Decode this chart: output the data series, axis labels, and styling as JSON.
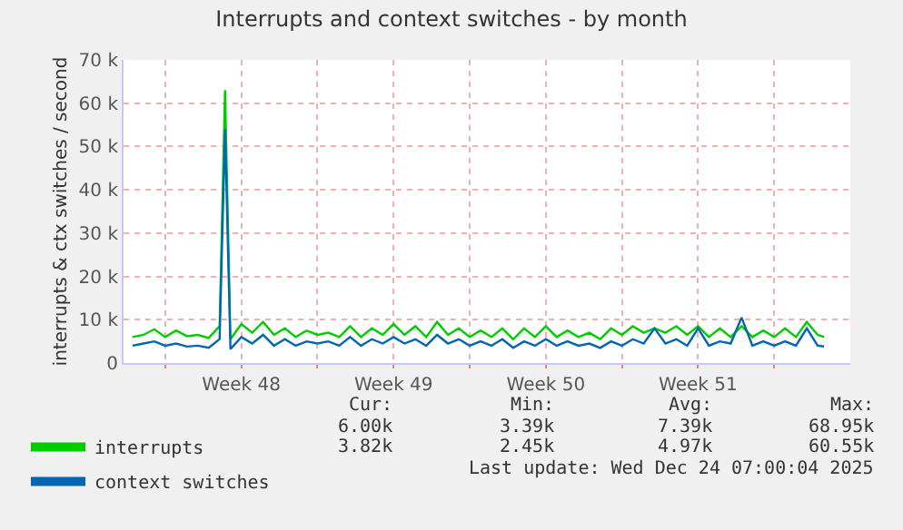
{
  "chart_data": {
    "type": "line",
    "title": "Interrupts and context switches - by month",
    "ylabel": "interrupts & ctx switches / second",
    "x": [
      "2025-11-22T12:00",
      "2025-11-23T00:00",
      "2025-11-23T12:00",
      "2025-11-24T00:00",
      "2025-11-24T12:00",
      "2025-11-25T00:00",
      "2025-11-25T12:00",
      "2025-11-26T00:00",
      "2025-11-26T12:00",
      "2025-11-26T18:00",
      "2025-11-27T00:00",
      "2025-11-27T12:00",
      "2025-11-28T00:00",
      "2025-11-28T12:00",
      "2025-11-29T00:00",
      "2025-11-29T12:00",
      "2025-11-30T00:00",
      "2025-11-30T12:00",
      "2025-12-01T00:00",
      "2025-12-01T12:00",
      "2025-12-02T00:00",
      "2025-12-02T12:00",
      "2025-12-03T00:00",
      "2025-12-03T12:00",
      "2025-12-04T00:00",
      "2025-12-04T12:00",
      "2025-12-05T00:00",
      "2025-12-05T12:00",
      "2025-12-06T00:00",
      "2025-12-06T12:00",
      "2025-12-07T00:00",
      "2025-12-07T12:00",
      "2025-12-08T00:00",
      "2025-12-08T12:00",
      "2025-12-09T00:00",
      "2025-12-09T12:00",
      "2025-12-10T00:00",
      "2025-12-10T12:00",
      "2025-12-11T00:00",
      "2025-12-11T12:00",
      "2025-12-12T00:00",
      "2025-12-12T12:00",
      "2025-12-13T00:00",
      "2025-12-13T12:00",
      "2025-12-14T00:00",
      "2025-12-14T12:00",
      "2025-12-15T00:00",
      "2025-12-15T12:00",
      "2025-12-16T00:00",
      "2025-12-16T12:00",
      "2025-12-17T00:00",
      "2025-12-17T12:00",
      "2025-12-18T00:00",
      "2025-12-18T12:00",
      "2025-12-19T00:00",
      "2025-12-19T12:00",
      "2025-12-20T00:00",
      "2025-12-20T12:00",
      "2025-12-21T00:00",
      "2025-12-21T12:00",
      "2025-12-22T00:00",
      "2025-12-22T12:00",
      "2025-12-23T00:00",
      "2025-12-23T12:00",
      "2025-12-24T00:00",
      "2025-12-24T07:00"
    ],
    "series": [
      {
        "name": "interrupts",
        "color": "#00cc00",
        "values": [
          6000,
          6500,
          7800,
          6000,
          7500,
          6200,
          6500,
          5800,
          8500,
          63000,
          5500,
          9000,
          7000,
          9500,
          6500,
          8000,
          6000,
          7500,
          6500,
          7000,
          6000,
          8500,
          6000,
          8000,
          6500,
          9000,
          6500,
          8500,
          6000,
          9500,
          6500,
          8000,
          6000,
          7500,
          6000,
          8000,
          5500,
          8000,
          6000,
          8500,
          6000,
          7500,
          6000,
          7000,
          5500,
          8000,
          6500,
          8500,
          7000,
          8000,
          7000,
          8500,
          6500,
          8500,
          6000,
          8000,
          6000,
          8500,
          6000,
          7500,
          6000,
          8000,
          6000,
          9500,
          6500,
          6000
        ]
      },
      {
        "name": "context switches",
        "color": "#0066b3",
        "values": [
          4000,
          4500,
          5000,
          4000,
          4500,
          3800,
          4000,
          3500,
          5500,
          54000,
          3200,
          6000,
          4500,
          6500,
          4000,
          5500,
          4000,
          5000,
          4500,
          5000,
          4000,
          6000,
          4000,
          5500,
          4500,
          6000,
          4500,
          5500,
          4000,
          6500,
          4500,
          5500,
          4000,
          5000,
          4000,
          5500,
          3500,
          5000,
          4000,
          5500,
          4000,
          5000,
          4000,
          4500,
          3500,
          5000,
          4000,
          5500,
          4500,
          8000,
          4500,
          5500,
          4000,
          8000,
          4000,
          5000,
          4500,
          10500,
          4000,
          5000,
          4000,
          5000,
          4000,
          8000,
          4000,
          3820
        ]
      }
    ],
    "xlim": [
      "2025-11-22T02:00",
      "2025-12-25T12:00"
    ],
    "xticks": [
      {
        "value": "2025-11-24T00:00",
        "label": null
      },
      {
        "value": "2025-11-27T12:00",
        "label": "Week 48"
      },
      {
        "value": "2025-12-01T00:00",
        "label": null
      },
      {
        "value": "2025-12-04T12:00",
        "label": "Week 49"
      },
      {
        "value": "2025-12-08T00:00",
        "label": null
      },
      {
        "value": "2025-12-11T12:00",
        "label": "Week 50"
      },
      {
        "value": "2025-12-15T00:00",
        "label": null
      },
      {
        "value": "2025-12-18T12:00",
        "label": "Week 51"
      },
      {
        "value": "2025-12-22T00:00",
        "label": null
      }
    ],
    "ylim": [
      0,
      70000
    ],
    "yticks": [
      0,
      {
        "value": 10000,
        "label": "10 k"
      },
      {
        "value": 20000,
        "label": "20 k"
      },
      {
        "value": 30000,
        "label": "30 k"
      },
      {
        "value": 40000,
        "label": "40 k"
      },
      {
        "value": 50000,
        "label": "50 k"
      },
      {
        "value": 60000,
        "label": "60 k"
      },
      {
        "value": 70000,
        "label": "70 k"
      }
    ],
    "grid": true,
    "legend": "bottom left",
    "marker": "none",
    "line_style": "solid",
    "annotations": [
      "Cur:",
      "Min:",
      "Avg:",
      "Max:",
      "6.00k",
      "3.39k",
      "7.39k",
      "68.95k",
      "3.82k",
      "2.45k",
      "4.97k",
      "60.55k",
      "Last update: Wed Dec 24 07:00:04 2025"
    ]
  }
}
